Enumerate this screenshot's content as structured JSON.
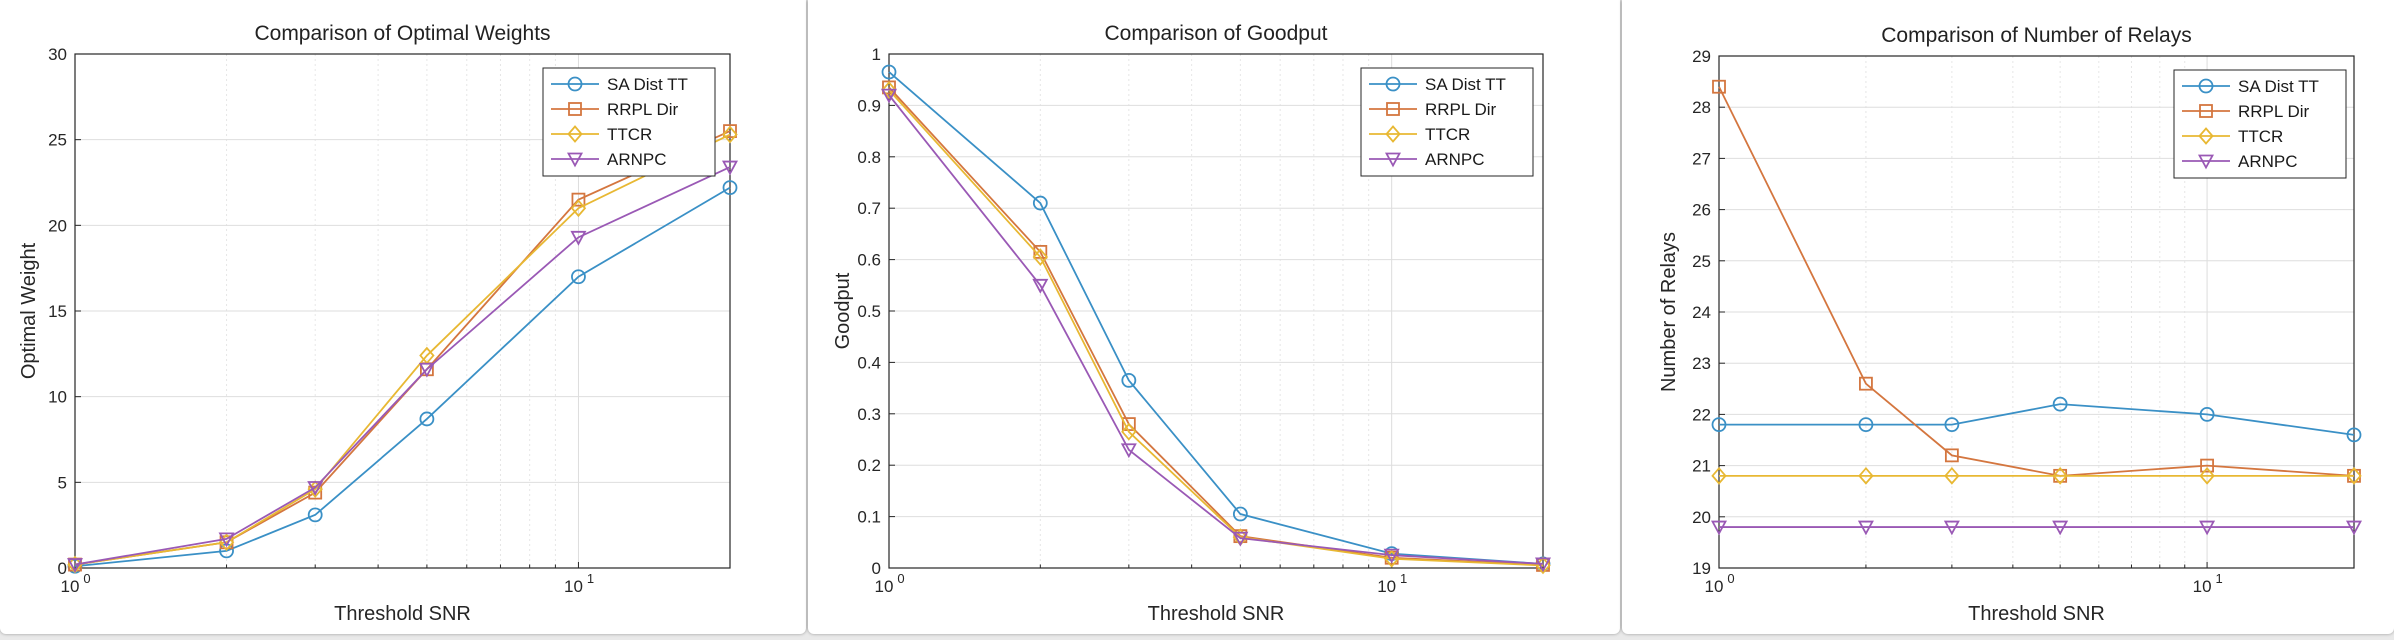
{
  "colors": {
    "SA Dist TT": "#3a90c6",
    "RRPL Dir": "#d4763f",
    "TTCR": "#e8b833",
    "ARNPC": "#9a59b5"
  },
  "markers": {
    "SA Dist TT": "circle",
    "RRPL Dir": "square",
    "TTCR": "diamond",
    "ARNPC": "triangle-down"
  },
  "chart_data": [
    {
      "type": "line",
      "title": "Comparison of Optimal Weights",
      "xlabel": "Threshold SNR",
      "ylabel": "Optimal Weight",
      "xscale": "log",
      "xlim": [
        1,
        20
      ],
      "ylim": [
        0,
        30
      ],
      "yticks": [
        0,
        5,
        10,
        15,
        20,
        25,
        30
      ],
      "xtick_labels": [
        {
          "base": "10",
          "exp": "0",
          "value": 1
        },
        {
          "base": "10",
          "exp": "1",
          "value": 10
        }
      ],
      "grid": true,
      "legend": "top-right",
      "x": [
        1,
        2,
        3,
        5,
        10,
        20
      ],
      "series": [
        {
          "name": "SA Dist TT",
          "values": [
            0.1,
            1.0,
            3.1,
            8.7,
            17.0,
            22.2
          ]
        },
        {
          "name": "RRPL Dir",
          "values": [
            0.2,
            1.5,
            4.4,
            11.6,
            21.5,
            25.5
          ]
        },
        {
          "name": "TTCR",
          "values": [
            0.2,
            1.5,
            4.6,
            12.4,
            21.0,
            25.3
          ]
        },
        {
          "name": "ARNPC",
          "values": [
            0.2,
            1.7,
            4.7,
            11.6,
            19.3,
            23.4
          ]
        }
      ]
    },
    {
      "type": "line",
      "title": "Comparison of Goodput",
      "xlabel": "Threshold SNR",
      "ylabel": "Goodput",
      "xscale": "log",
      "xlim": [
        1,
        20
      ],
      "ylim": [
        0,
        1
      ],
      "yticks": [
        0,
        0.1,
        0.2,
        0.3,
        0.4,
        0.5,
        0.6,
        0.7,
        0.8,
        0.9,
        1
      ],
      "xtick_labels": [
        {
          "base": "10",
          "exp": "0",
          "value": 1
        },
        {
          "base": "10",
          "exp": "1",
          "value": 10
        }
      ],
      "grid": true,
      "legend": "top-right",
      "x": [
        1,
        2,
        3,
        5,
        10,
        20
      ],
      "series": [
        {
          "name": "SA Dist TT",
          "values": [
            0.965,
            0.71,
            0.365,
            0.105,
            0.028,
            0.008
          ]
        },
        {
          "name": "RRPL Dir",
          "values": [
            0.935,
            0.615,
            0.28,
            0.062,
            0.02,
            0.006
          ]
        },
        {
          "name": "TTCR",
          "values": [
            0.93,
            0.605,
            0.265,
            0.06,
            0.018,
            0.005
          ]
        },
        {
          "name": "ARNPC",
          "values": [
            0.92,
            0.55,
            0.23,
            0.058,
            0.025,
            0.008
          ]
        }
      ]
    },
    {
      "type": "line",
      "title": "Comparison of Number of Relays",
      "xlabel": "Threshold SNR",
      "ylabel": "Number of Relays",
      "xscale": "log",
      "xlim": [
        1,
        20
      ],
      "ylim": [
        19,
        29
      ],
      "yticks": [
        19,
        20,
        21,
        22,
        23,
        24,
        25,
        26,
        27,
        28,
        29
      ],
      "xtick_labels": [
        {
          "base": "10",
          "exp": "0",
          "value": 1
        },
        {
          "base": "10",
          "exp": "1",
          "value": 10
        }
      ],
      "grid": true,
      "legend": "top-right",
      "x": [
        1,
        2,
        3,
        5,
        10,
        20
      ],
      "series": [
        {
          "name": "SA Dist TT",
          "values": [
            21.8,
            21.8,
            21.8,
            22.2,
            22.0,
            21.6
          ]
        },
        {
          "name": "RRPL Dir",
          "values": [
            28.4,
            22.6,
            21.2,
            20.8,
            21.0,
            20.8
          ]
        },
        {
          "name": "TTCR",
          "values": [
            20.8,
            20.8,
            20.8,
            20.8,
            20.8,
            20.8
          ]
        },
        {
          "name": "ARNPC",
          "values": [
            19.8,
            19.8,
            19.8,
            19.8,
            19.8,
            19.8
          ]
        }
      ]
    }
  ]
}
